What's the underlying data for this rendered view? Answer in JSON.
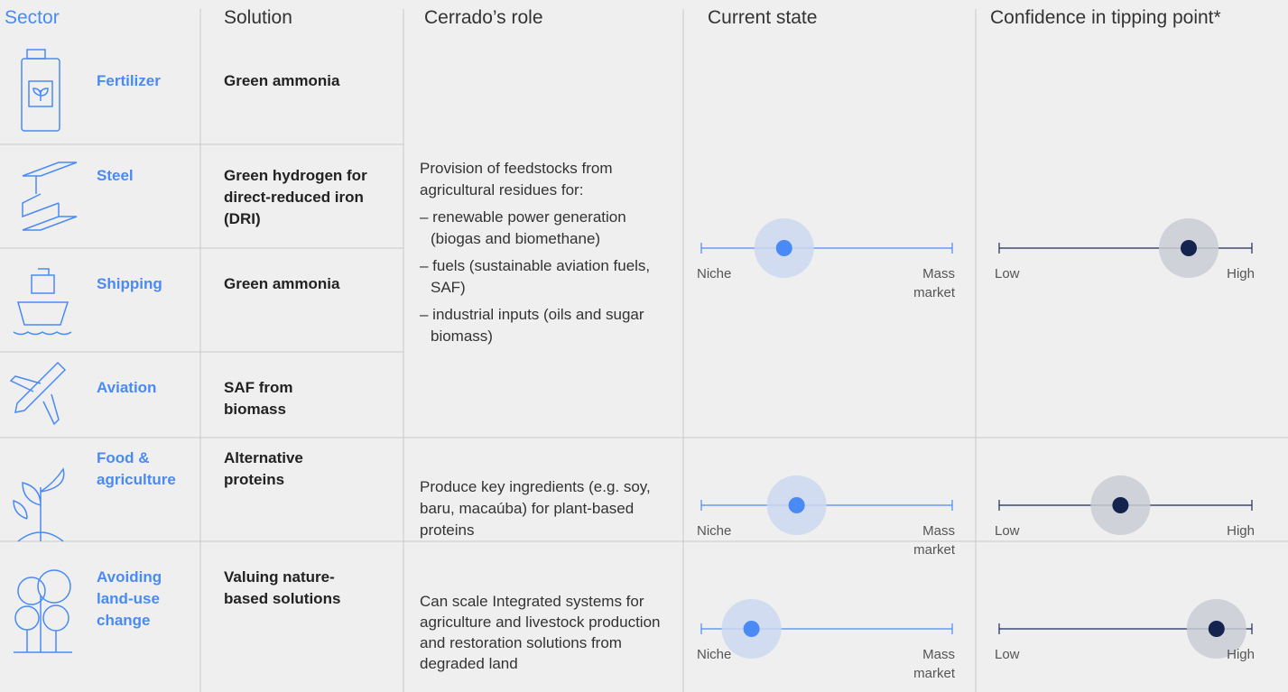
{
  "header": {
    "sector": "Sector",
    "solution": "Solution",
    "role": "Cerrado’s role",
    "current_state": "Current state",
    "confidence": "Confidence in tipping point*"
  },
  "rows": [
    {
      "sector": "Fertilizer",
      "solution": "Green ammonia"
    },
    {
      "sector": "Steel",
      "solution": "Green hydrogen for direct-reduced iron (DRI)"
    },
    {
      "sector": "Shipping",
      "solution": "Green ammonia"
    },
    {
      "sector": "Aviation",
      "solution": "SAF from biomass"
    },
    {
      "sector": "Food & agriculture",
      "solution": "Alternative proteins"
    },
    {
      "sector": "Avoiding land-use change",
      "solution": "Valuing nature-based solutions"
    }
  ],
  "groups": [
    {
      "role_intro": "Provision of feedstocks from agricultural residues for:",
      "role_items": [
        "– renewable power generation (biogas and biomethane)",
        "– fuels (sustainable aviation fuels, SAF)",
        "– industrial inputs (oils and sugar biomass)"
      ],
      "current_state": {
        "position": 0.33,
        "low": "Niche",
        "high": "Mass market"
      },
      "confidence": {
        "position": 0.75,
        "low": "Low",
        "high": "High"
      }
    },
    {
      "role_intro": "Produce key ingredients (e.g. soy, baru, macaúba) for plant-based proteins",
      "role_items": [],
      "current_state": {
        "position": 0.38,
        "low": "Niche",
        "high": "Mass market"
      },
      "confidence": {
        "position": 0.48,
        "low": "Low",
        "high": "High"
      }
    },
    {
      "role_intro": "Can scale Integrated systems for agriculture and livestock production and restoration solutions from degraded land",
      "role_items": [],
      "current_state": {
        "position": 0.2,
        "low": "Niche",
        "high": "Mass market"
      },
      "confidence": {
        "position": 0.86,
        "low": "Low",
        "high": "High"
      }
    }
  ]
}
